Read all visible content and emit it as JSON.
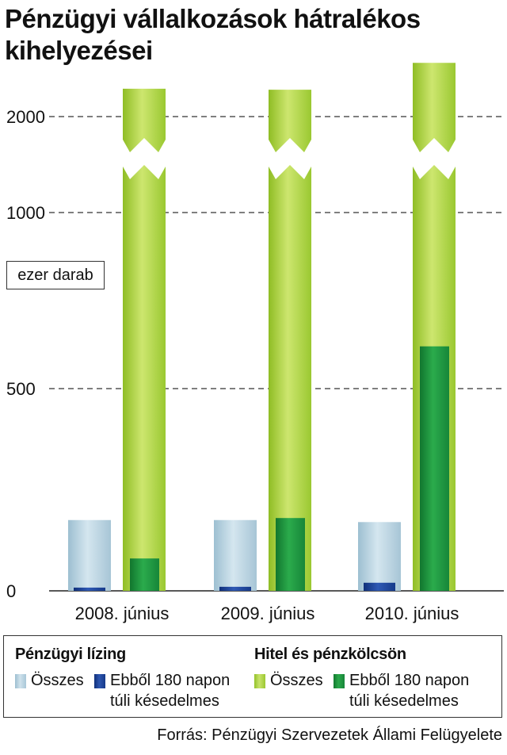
{
  "title_lines": [
    "Pénzügyi vállalkozások hátralékos",
    "kihelyezései"
  ],
  "unit_label": "ezer darab",
  "source": "Forrás: Pénzügyi Szervezetek Állami Felügyelete",
  "colors": {
    "leasing_total": "#b9d3e0",
    "leasing_overdue": "#1a3d8f",
    "loan_total": "#a8cf3a",
    "loan_overdue": "#1f8f3c",
    "grid": "#333333"
  },
  "legend": {
    "group1": {
      "title": "Pénzügyi lízing",
      "total": "Összes",
      "overdue_line1": "Ebből 180 napon",
      "overdue_line2": "túli késedelmes"
    },
    "group2": {
      "title": "Hitel és pénzkölcsön",
      "total": "Összes",
      "overdue_line1": "Ebből 180 napon",
      "overdue_line2": "túli késedelmes"
    }
  },
  "chart_data": {
    "type": "bar",
    "axis_break": true,
    "y_ticks": [
      0,
      500,
      1000,
      2000
    ],
    "categories": [
      "2008. június",
      "2009. június",
      "2010. június"
    ],
    "series": [
      {
        "name": "Pénzügyi lízing – Összes",
        "values": [
          175,
          175,
          170
        ]
      },
      {
        "name": "Pénzügyi lízing – Ebből 180 napon túli késedelmes",
        "values": [
          8,
          10,
          20
        ]
      },
      {
        "name": "Hitel és pénzkölcsön – Összes",
        "values": [
          2290,
          2280,
          2560
        ]
      },
      {
        "name": "Hitel és pénzkölcsön – Ebből 180 napon túli késedelmes",
        "values": [
          80,
          180,
          620
        ]
      }
    ]
  }
}
